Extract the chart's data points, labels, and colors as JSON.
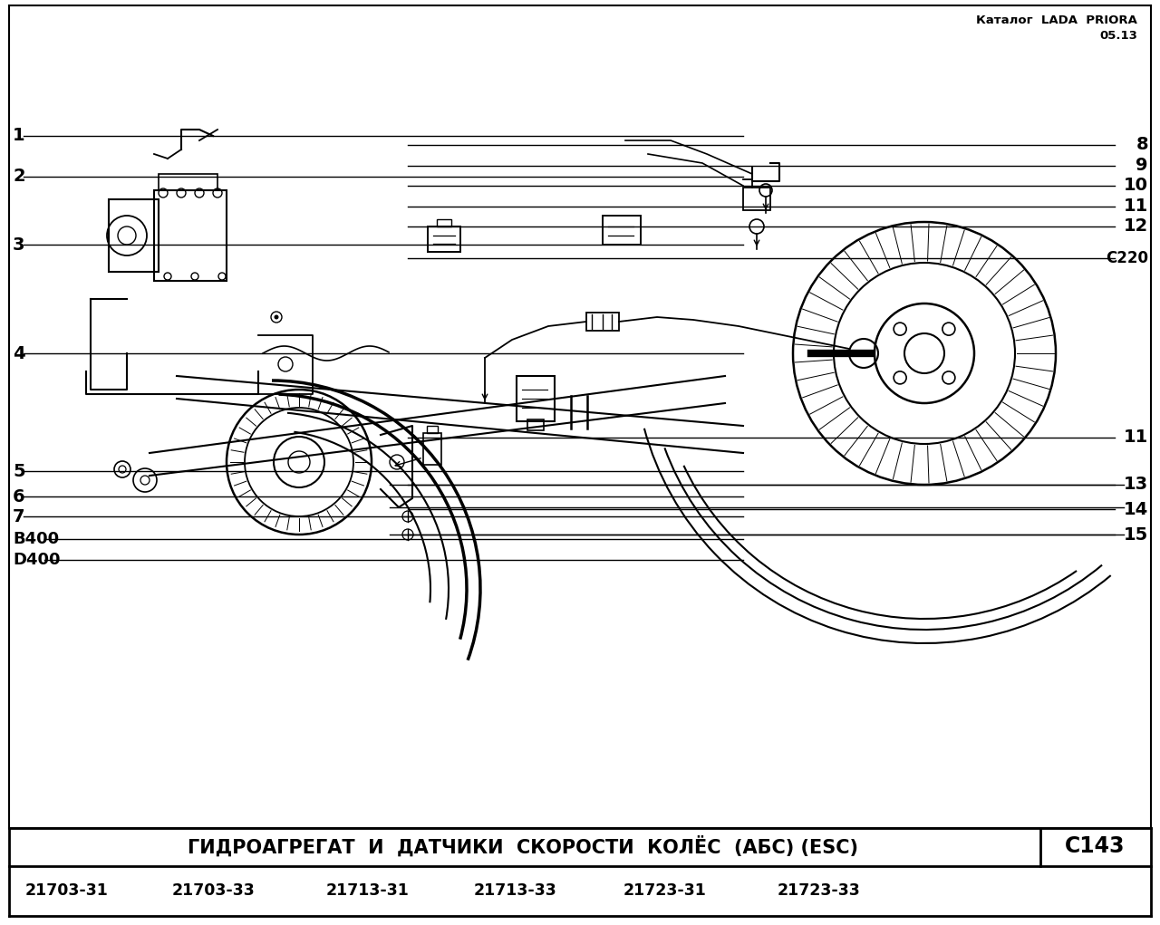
{
  "title_top_right_line1": "Каталог  LADA  PRIORA",
  "title_top_right_line2": "05.13",
  "bottom_title": "ГИДРОАГРЕГАТ  И  ДАТЧИКИ  СКОРОСТИ  КОЛЁС  (АБС) (ESC)",
  "bottom_code": "C143",
  "part_numbers": [
    "21703-31",
    "21703-33",
    "21713-31",
    "21713-33",
    "21723-31",
    "21723-33"
  ],
  "bg_color": "#ffffff",
  "line_color": "#000000",
  "left_labels": [
    [
      "1",
      150
    ],
    [
      "2",
      195
    ],
    [
      "3",
      270
    ],
    [
      "4",
      390
    ],
    [
      "5",
      520
    ],
    [
      "6",
      548
    ],
    [
      "7",
      570
    ],
    [
      "B400",
      595
    ],
    [
      "D400",
      618
    ]
  ],
  "right_labels": [
    [
      "8",
      160
    ],
    [
      "9",
      183
    ],
    [
      "10",
      205
    ],
    [
      "11",
      228
    ],
    [
      "12",
      250
    ],
    [
      "C220",
      285
    ],
    [
      "11",
      483
    ],
    [
      "13",
      535
    ],
    [
      "14",
      562
    ],
    [
      "15",
      590
    ]
  ]
}
